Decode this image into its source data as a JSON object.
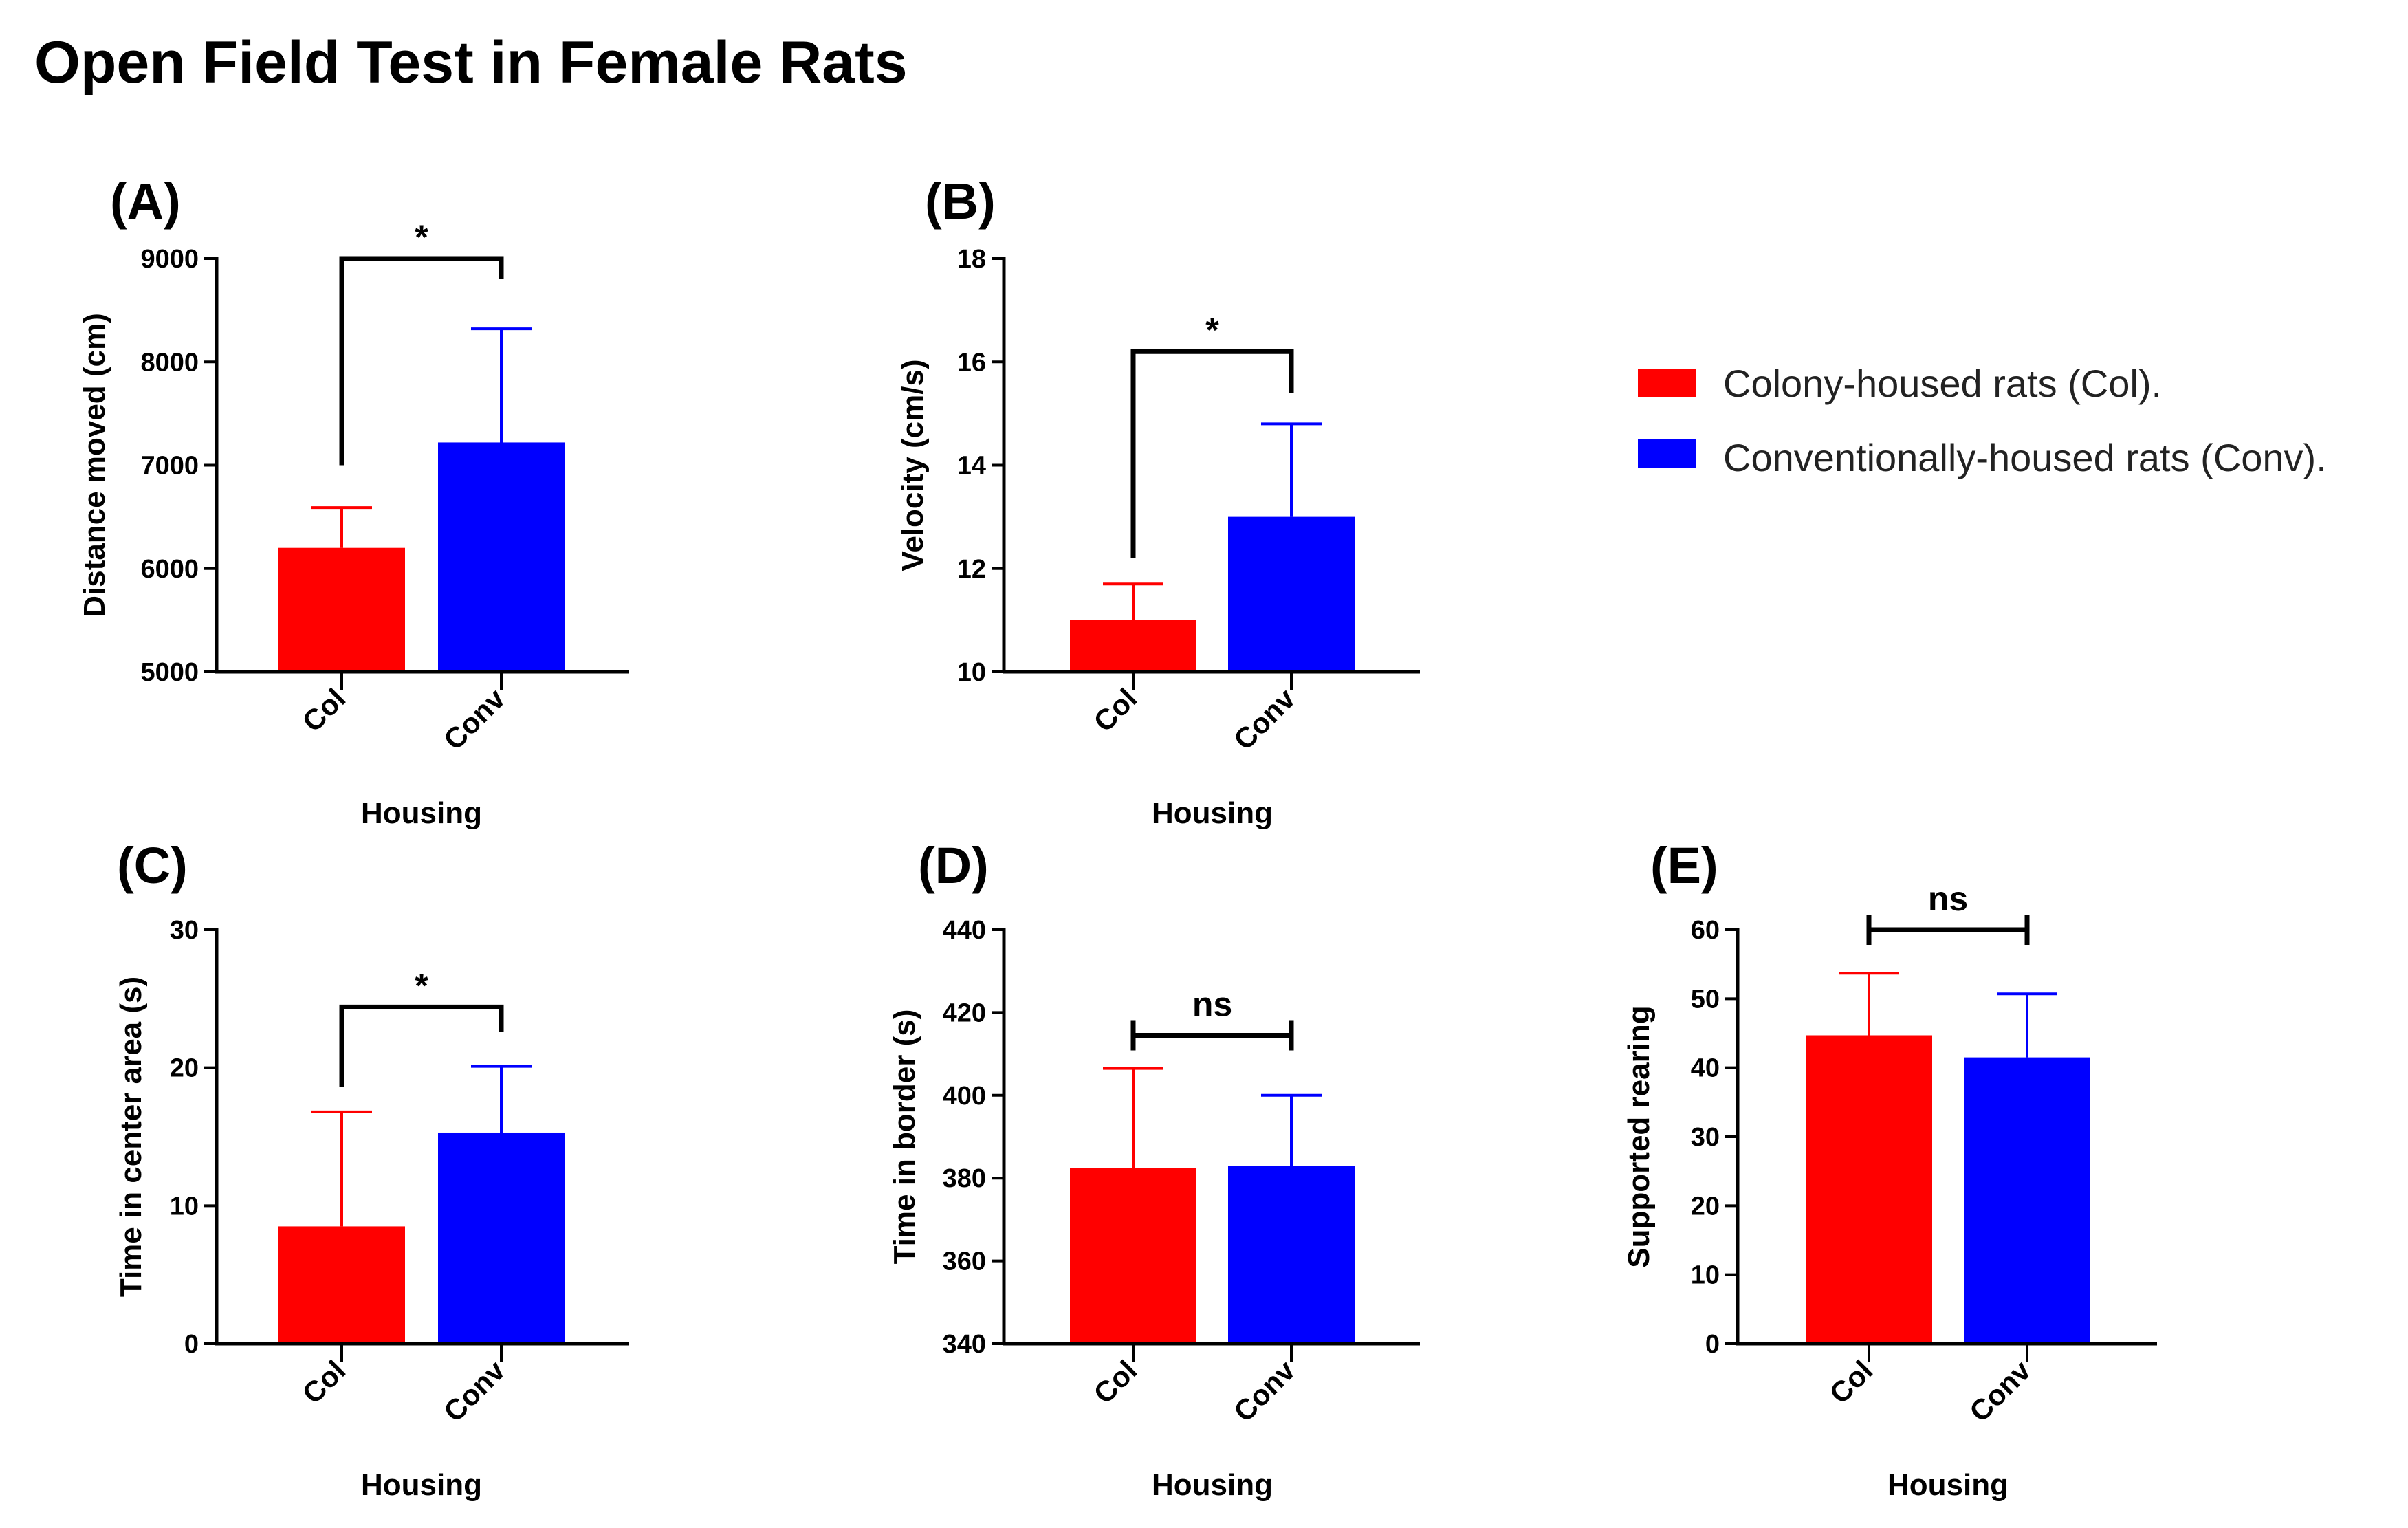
{
  "figure_title": "Open Field Test in Female Rats",
  "colors": {
    "col": "#ff0000",
    "conv": "#0000ff",
    "axis": "#000000"
  },
  "legend": [
    {
      "label": "Colony-housed rats (Col).",
      "color_key": "col"
    },
    {
      "label": "Conventionally-housed rats (Conv).",
      "color_key": "conv"
    }
  ],
  "chart_data": [
    {
      "panel": "(A)",
      "type": "bar",
      "categories": [
        "Col",
        "Conv"
      ],
      "values": [
        6200,
        7220
      ],
      "errors": [
        390,
        1100
      ],
      "xlabel": "Housing",
      "ylabel": "Distance moved (cm)",
      "ylim": [
        5000,
        9000
      ],
      "yticks": [
        5000,
        6000,
        7000,
        8000,
        9000
      ],
      "significance": {
        "label": "*",
        "style": "tall-bracket",
        "y": 9000,
        "left_from": 7000,
        "right_from": 8800
      }
    },
    {
      "panel": "(B)",
      "type": "bar",
      "categories": [
        "Col",
        "Conv"
      ],
      "values": [
        11.0,
        13.0
      ],
      "errors": [
        0.7,
        1.8
      ],
      "xlabel": "Housing",
      "ylabel": "Velocity (cm/s)",
      "ylim": [
        10,
        18
      ],
      "yticks": [
        10,
        12,
        14,
        16,
        18
      ],
      "significance": {
        "label": "*",
        "style": "tall-bracket",
        "y": 16.2,
        "left_from": 12.2,
        "right_from": 15.4
      }
    },
    {
      "panel": "(C)",
      "type": "bar",
      "categories": [
        "Col",
        "Conv"
      ],
      "values": [
        8.5,
        15.3
      ],
      "errors": [
        8.3,
        4.8
      ],
      "xlabel": "Housing",
      "ylabel": "Time in center area (s)",
      "ylim": [
        0,
        30
      ],
      "yticks": [
        0,
        10,
        20,
        30
      ],
      "significance": {
        "label": "*",
        "style": "tall-bracket",
        "y": 24.4,
        "left_from": 18.6,
        "right_from": 22.6
      }
    },
    {
      "panel": "(D)",
      "type": "bar",
      "categories": [
        "Col",
        "Conv"
      ],
      "values": [
        382.5,
        383.0
      ],
      "errors": [
        24.0,
        17.0
      ],
      "xlabel": "Housing",
      "ylabel": "Time in border (s)",
      "ylim": [
        340,
        440
      ],
      "yticks": [
        340,
        360,
        380,
        400,
        420,
        440
      ],
      "significance": {
        "label": "ns",
        "style": "short-bracket",
        "y": 414.5
      }
    },
    {
      "panel": "(E)",
      "type": "bar",
      "categories": [
        "Col",
        "Conv"
      ],
      "values": [
        44.7,
        41.5
      ],
      "errors": [
        9.0,
        9.2
      ],
      "xlabel": "Housing",
      "ylabel": "Supported rearing",
      "ylim": [
        0,
        60
      ],
      "yticks": [
        0,
        10,
        20,
        30,
        40,
        50,
        60
      ],
      "significance": {
        "label": "ns",
        "style": "short-bracket",
        "y": 60
      }
    }
  ]
}
